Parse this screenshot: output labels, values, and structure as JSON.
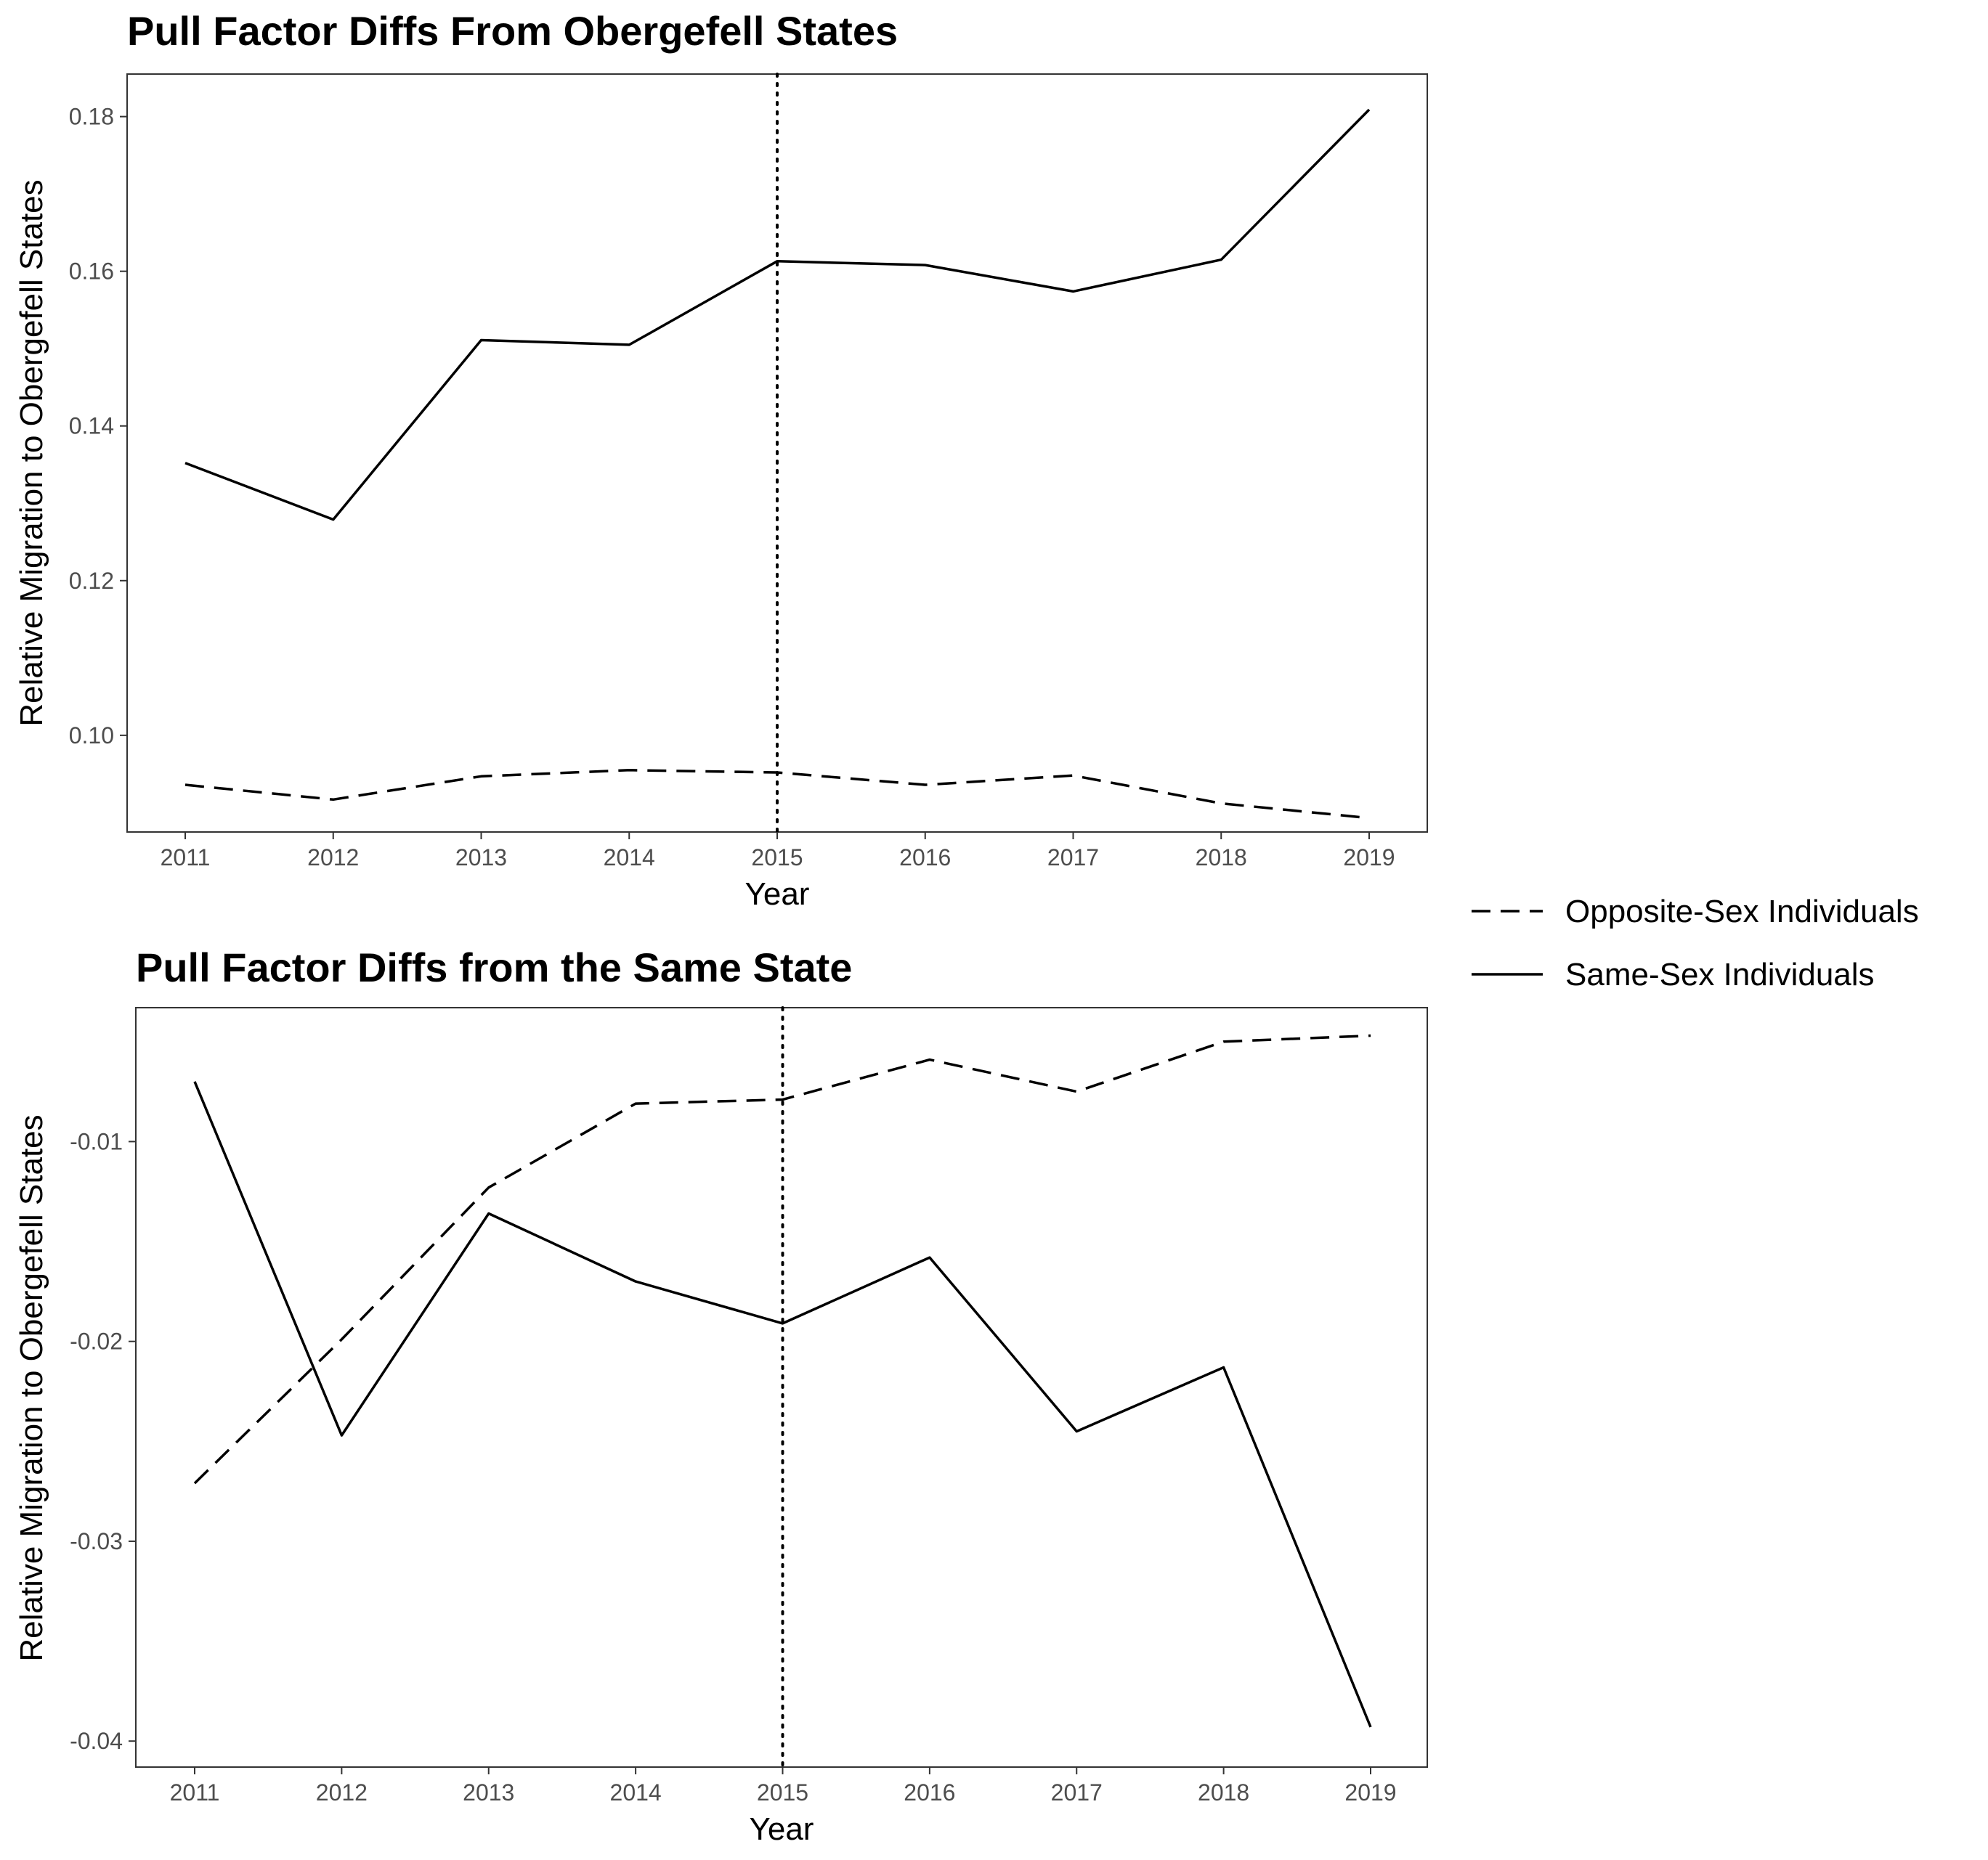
{
  "chart_data": [
    {
      "type": "line",
      "title": "Pull Factor Diffs From Obergefell States",
      "xlabel": "Year",
      "ylabel": "Relative Migration to Obergefell States",
      "x": [
        2011,
        2012,
        2013,
        2014,
        2015,
        2016,
        2017,
        2018,
        2019
      ],
      "x_tick_labels": [
        "2011",
        "2012",
        "2013",
        "2014",
        "2015",
        "2016",
        "2017",
        "2018",
        "2019"
      ],
      "y_ticks": [
        0.1,
        0.12,
        0.14,
        0.16,
        0.18
      ],
      "y_tick_labels": [
        "0.10",
        "0.12",
        "0.14",
        "0.16",
        "0.18"
      ],
      "ylim": [
        0.0875,
        0.1855
      ],
      "grid": false,
      "vline_x": 2015,
      "series": [
        {
          "name": "Opposite-Sex Individuals",
          "linetype": "dashed",
          "values": [
            0.0936,
            0.0917,
            0.0947,
            0.0955,
            0.0952,
            0.0936,
            0.0948,
            0.0912,
            0.0893
          ]
        },
        {
          "name": "Same-Sex Individuals",
          "linetype": "solid",
          "values": [
            0.1352,
            0.1279,
            0.1511,
            0.1505,
            0.1613,
            0.1608,
            0.1574,
            0.1615,
            0.1809
          ]
        }
      ]
    },
    {
      "type": "line",
      "title": "Pull Factor Diffs from the Same State",
      "xlabel": "Year",
      "ylabel": "Relative Migration to Obergefell States",
      "x": [
        2011,
        2012,
        2013,
        2014,
        2015,
        2016,
        2017,
        2018,
        2019
      ],
      "x_tick_labels": [
        "2011",
        "2012",
        "2013",
        "2014",
        "2015",
        "2016",
        "2017",
        "2018",
        "2019"
      ],
      "y_ticks": [
        -0.04,
        -0.03,
        -0.02,
        -0.01
      ],
      "y_tick_labels": [
        "-0.04",
        "-0.03",
        "-0.02",
        "-0.01"
      ],
      "ylim": [
        -0.0413,
        -0.0033
      ],
      "grid": false,
      "vline_x": 2015,
      "series": [
        {
          "name": "Opposite-Sex Individuals",
          "linetype": "dashed",
          "values": [
            -0.0271,
            -0.0199,
            -0.0123,
            -0.0081,
            -0.0079,
            -0.0059,
            -0.0075,
            -0.005,
            -0.0047
          ]
        },
        {
          "name": "Same-Sex Individuals",
          "linetype": "solid",
          "values": [
            -0.007,
            -0.0247,
            -0.0136,
            -0.017,
            -0.0191,
            -0.0158,
            -0.0245,
            -0.0213,
            -0.0393
          ]
        }
      ]
    }
  ],
  "legend": {
    "placement": "right",
    "items": [
      {
        "label": "Opposite-Sex Individuals",
        "linetype": "dashed"
      },
      {
        "label": "Same-Sex Individuals",
        "linetype": "solid"
      }
    ]
  },
  "colors": {
    "line": "#000000",
    "panel_border": "#333333",
    "tick_text": "#4d4d4d",
    "background": "#ffffff"
  }
}
